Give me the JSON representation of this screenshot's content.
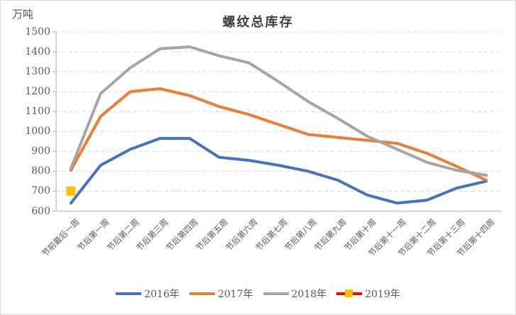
{
  "chart_data": {
    "type": "line",
    "title": "螺纹总库存",
    "unit_label": "万吨",
    "categories": [
      "节前最后一周",
      "节后第一周",
      "节后第二周",
      "节后第三周",
      "节后第四周",
      "节后第五周",
      "节后第六周",
      "节后第七周",
      "节后第八周",
      "节后第九周",
      "节后第十周",
      "节后第十一周",
      "节后第十二周",
      "节后第十三周",
      "节后第十四周"
    ],
    "series": [
      {
        "name": "2016年",
        "color": "#4472C4",
        "style": "line",
        "values": [
          640,
          830,
          910,
          965,
          965,
          870,
          855,
          830,
          800,
          755,
          680,
          640,
          655,
          715,
          750
        ]
      },
      {
        "name": "2017年",
        "color": "#ED7D31",
        "style": "line",
        "values": [
          805,
          1075,
          1200,
          1215,
          1180,
          1125,
          1085,
          1035,
          985,
          970,
          955,
          940,
          890,
          825,
          755
        ]
      },
      {
        "name": "2018年",
        "color": "#A5A5A5",
        "style": "line",
        "values": [
          815,
          1190,
          1320,
          1415,
          1425,
          1380,
          1345,
          1250,
          1150,
          1065,
          975,
          910,
          845,
          805,
          780
        ]
      },
      {
        "name": "2019年",
        "color": "#FF0000",
        "style": "marker-square",
        "marker_color": "#FFC000",
        "values": [
          700,
          null,
          null,
          null,
          null,
          null,
          null,
          null,
          null,
          null,
          null,
          null,
          null,
          null,
          null
        ]
      }
    ],
    "ylim": [
      600,
      1500
    ],
    "ytick_step": 100,
    "grid": "horizontal-dashed",
    "gridline_color": "#D9D9D9",
    "axis_color": "#BFBFBF",
    "legend_position": "bottom"
  }
}
